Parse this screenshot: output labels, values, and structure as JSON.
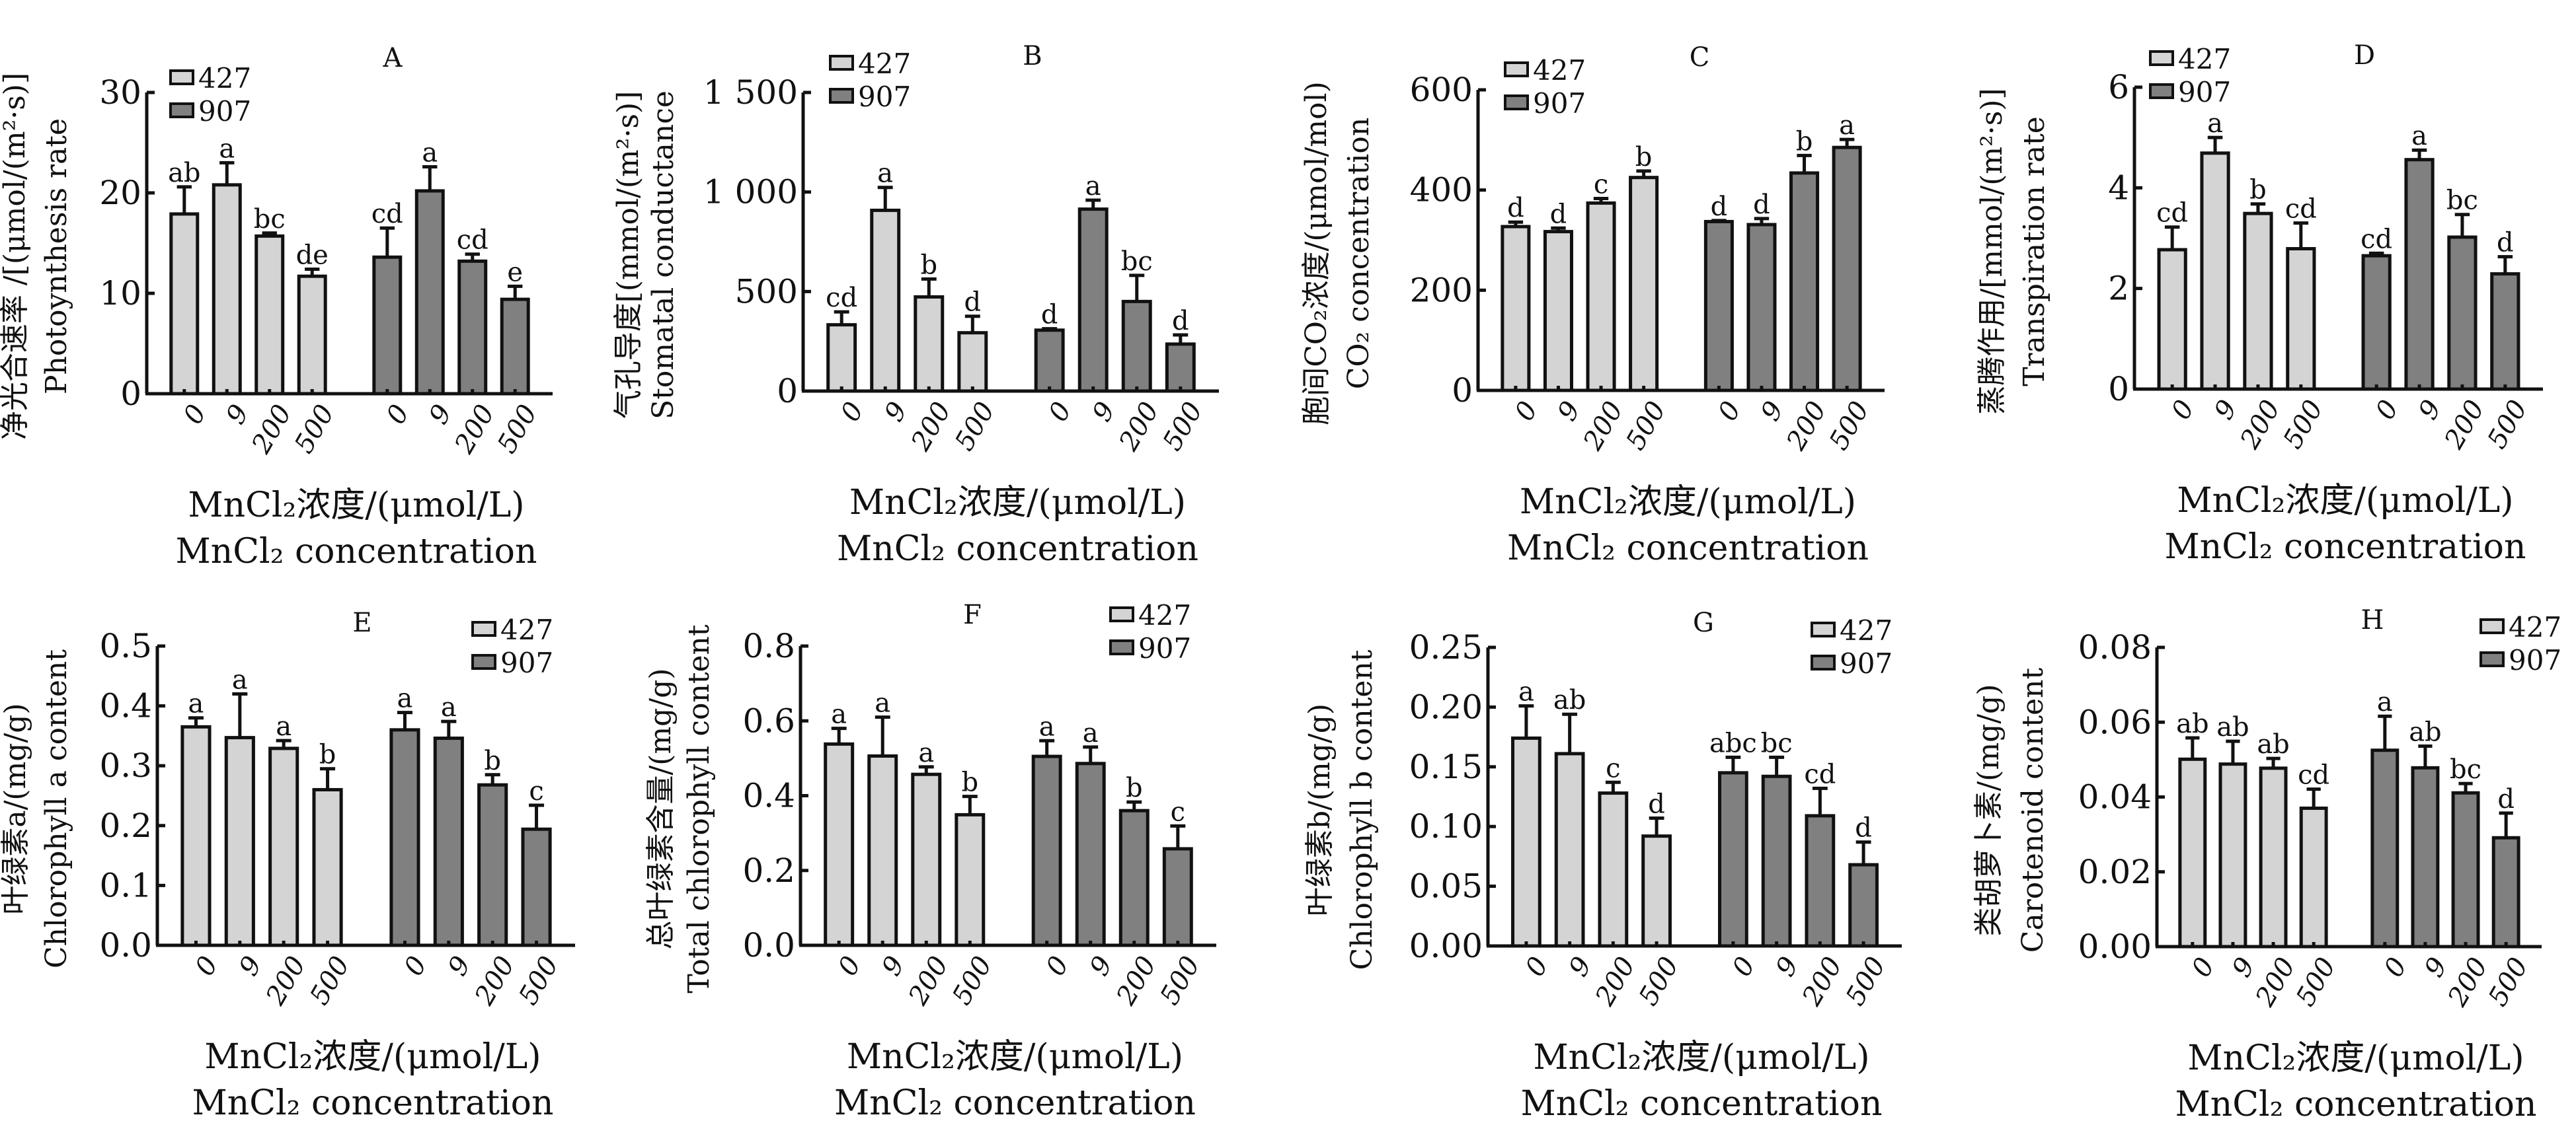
{
  "figure": {
    "x_title_cn": "MnCl₂浓度/(μmol/L)",
    "x_title_en": "MnCl₂ concentration",
    "legend": [
      {
        "label": "427",
        "color": "#d4d4d4"
      },
      {
        "label": "907",
        "color": "#808080"
      }
    ]
  },
  "chart_data": [
    {
      "id": "A",
      "type": "bar",
      "title": "A",
      "ylabel_cn": "净光合速率 /[(μmol/(m²·s)]",
      "ylabel_en": "Photoynthesis rate",
      "xlabel": "MnCl₂浓度/(μmol/L) MnCl₂ concentration",
      "categories": [
        "0",
        "9",
        "200",
        "500"
      ],
      "ylim": [
        0,
        30
      ],
      "yticks": [
        0,
        10,
        20,
        30
      ],
      "ytick_labels": [
        "0",
        "10",
        "20",
        "30"
      ],
      "legend_position": "top-left",
      "series": [
        {
          "name": "427",
          "values": [
            17.9,
            20.8,
            15.7,
            11.7
          ],
          "errors": [
            2.7,
            2.2,
            0.3,
            0.7
          ],
          "letters": [
            "ab",
            "a",
            "bc",
            "de"
          ]
        },
        {
          "name": "907",
          "values": [
            13.6,
            20.2,
            13.2,
            9.4
          ],
          "errors": [
            2.9,
            2.4,
            0.7,
            1.3
          ],
          "letters": [
            "cd",
            "a",
            "cd",
            "e"
          ]
        }
      ]
    },
    {
      "id": "B",
      "type": "bar",
      "title": "B",
      "ylabel_cn": "气孔导度[(mmol/(m²·s)]",
      "ylabel_en": "Stomatal conductance",
      "xlabel": "MnCl₂浓度/(μmol/L) MnCl₂ concentration",
      "categories": [
        "0",
        "9",
        "200",
        "500"
      ],
      "ylim": [
        0,
        1500
      ],
      "yticks": [
        0,
        500,
        1000,
        1500
      ],
      "ytick_labels": [
        "0",
        "500",
        "1 000",
        "1 500"
      ],
      "legend_position": "top-left",
      "series": [
        {
          "name": "427",
          "values": [
            333,
            908,
            473,
            293
          ],
          "errors": [
            65,
            115,
            90,
            83
          ],
          "letters": [
            "cd",
            "a",
            "b",
            "d"
          ]
        },
        {
          "name": "907",
          "values": [
            306,
            914,
            450,
            236
          ],
          "errors": [
            7,
            45,
            131,
            46
          ],
          "letters": [
            "d",
            "a",
            "bc",
            "d"
          ]
        }
      ]
    },
    {
      "id": "C",
      "type": "bar",
      "title": "C",
      "ylabel_cn": "胞间CO₂浓度/(μmol/mol)",
      "ylabel_en": "CO₂ concentration",
      "xlabel": "MnCl₂浓度/(μmol/L) MnCl₂ concentration",
      "categories": [
        "0",
        "9",
        "200",
        "500"
      ],
      "ylim": [
        0,
        600
      ],
      "yticks": [
        0,
        200,
        400,
        600
      ],
      "ytick_labels": [
        "0",
        "200",
        "400",
        "600"
      ],
      "legend_position": "top-left",
      "series": [
        {
          "name": "427",
          "values": [
            327,
            317,
            374,
            425
          ],
          "errors": [
            9,
            7,
            9,
            13
          ],
          "letters": [
            "d",
            "d",
            "c",
            "b"
          ]
        },
        {
          "name": "907",
          "values": [
            337,
            331,
            434,
            485
          ],
          "errors": [
            2,
            12,
            35,
            16
          ],
          "letters": [
            "d",
            "d",
            "b",
            "a"
          ]
        }
      ]
    },
    {
      "id": "D",
      "type": "bar",
      "title": "D",
      "ylabel_cn": "蒸腾作用/[mmol/(m²·s)]",
      "ylabel_en": "Transpiration rate",
      "xlabel": "MnCl₂浓度/(μmol/L) MnCl₂ concentration",
      "categories": [
        "0",
        "9",
        "200",
        "500"
      ],
      "ylim": [
        0,
        6
      ],
      "yticks": [
        0,
        2,
        4,
        6
      ],
      "ytick_labels": [
        "0",
        "2",
        "4",
        "6"
      ],
      "legend_position": "top-left",
      "series": [
        {
          "name": "427",
          "values": [
            2.77,
            4.69,
            3.49,
            2.79
          ],
          "errors": [
            0.45,
            0.31,
            0.19,
            0.51
          ],
          "letters": [
            "cd",
            "a",
            "b",
            "cd"
          ]
        },
        {
          "name": "907",
          "values": [
            2.65,
            4.56,
            3.02,
            2.29
          ],
          "errors": [
            0.05,
            0.19,
            0.45,
            0.34
          ],
          "letters": [
            "cd",
            "a",
            "bc",
            "d"
          ]
        }
      ]
    },
    {
      "id": "E",
      "type": "bar",
      "title": "E",
      "ylabel_cn": "叶绿素a/(mg/g)",
      "ylabel_en": "Chlorophyll a content",
      "xlabel": "MnCl₂浓度/(μmol/L) MnCl₂ concentration",
      "categories": [
        "0",
        "9",
        "200",
        "500"
      ],
      "ylim": [
        0,
        0.5
      ],
      "yticks": [
        0,
        0.1,
        0.2,
        0.3,
        0.4,
        0.5
      ],
      "ytick_labels": [
        "0.0",
        "0.1",
        "0.2",
        "0.3",
        "0.4",
        "0.5"
      ],
      "legend_position": "top-right",
      "series": [
        {
          "name": "427",
          "values": [
            0.365,
            0.347,
            0.329,
            0.26
          ],
          "errors": [
            0.015,
            0.073,
            0.013,
            0.035
          ],
          "letters": [
            "a",
            "a",
            "a",
            "b"
          ]
        },
        {
          "name": "907",
          "values": [
            0.36,
            0.346,
            0.268,
            0.194
          ],
          "errors": [
            0.029,
            0.028,
            0.017,
            0.04
          ],
          "letters": [
            "a",
            "a",
            "b",
            "c"
          ]
        }
      ]
    },
    {
      "id": "F",
      "type": "bar",
      "title": "F",
      "ylabel_cn": "总叶绿素含量/(mg/g)",
      "ylabel_en": "Total chlorophyll content",
      "xlabel": "MnCl₂浓度/(μmol/L) MnCl₂ concentration",
      "categories": [
        "0",
        "9",
        "200",
        "500"
      ],
      "ylim": [
        0,
        0.8
      ],
      "yticks": [
        0,
        0.2,
        0.4,
        0.6,
        0.8
      ],
      "ytick_labels": [
        "0.0",
        "0.2",
        "0.4",
        "0.6",
        "0.8"
      ],
      "legend_position": "top-right",
      "series": [
        {
          "name": "427",
          "values": [
            0.538,
            0.506,
            0.457,
            0.349
          ],
          "errors": [
            0.042,
            0.104,
            0.02,
            0.049
          ],
          "letters": [
            "a",
            "a",
            "a",
            "b"
          ]
        },
        {
          "name": "907",
          "values": [
            0.505,
            0.486,
            0.36,
            0.258
          ],
          "errors": [
            0.042,
            0.044,
            0.023,
            0.061
          ],
          "letters": [
            "a",
            "a",
            "b",
            "c"
          ]
        }
      ]
    },
    {
      "id": "G",
      "type": "bar",
      "title": "G",
      "ylabel_cn": "叶绿素b/(mg/g)",
      "ylabel_en": "Chlorophyll b content",
      "xlabel": "MnCl₂浓度/(μmol/L) MnCl₂ concentration",
      "categories": [
        "0",
        "9",
        "200",
        "500"
      ],
      "ylim": [
        0,
        0.25
      ],
      "yticks": [
        0,
        0.05,
        0.1,
        0.15,
        0.2,
        0.25
      ],
      "ytick_labels": [
        "0.00",
        "0.05",
        "0.10",
        "0.15",
        "0.20",
        "0.25"
      ],
      "legend_position": "top-right",
      "series": [
        {
          "name": "427",
          "values": [
            0.174,
            0.161,
            0.128,
            0.092
          ],
          "errors": [
            0.027,
            0.033,
            0.009,
            0.015
          ],
          "letters": [
            "a",
            "ab",
            "c",
            "d"
          ]
        },
        {
          "name": "907",
          "values": [
            0.145,
            0.142,
            0.109,
            0.068
          ],
          "errors": [
            0.013,
            0.016,
            0.023,
            0.019
          ],
          "letters": [
            "abc",
            "bc",
            "cd",
            "d"
          ]
        }
      ]
    },
    {
      "id": "H",
      "type": "bar",
      "title": "H",
      "ylabel_cn": "类胡萝卜素/(mg/g)",
      "ylabel_en": "Carotenoid content",
      "xlabel": "MnCl₂浓度/(μmol/L) MnCl₂ concentration",
      "categories": [
        "0",
        "9",
        "200",
        "500"
      ],
      "ylim": [
        0,
        0.08
      ],
      "yticks": [
        0,
        0.02,
        0.04,
        0.06,
        0.08
      ],
      "ytick_labels": [
        "0.00",
        "0.02",
        "0.04",
        "0.06",
        "0.08"
      ],
      "legend_position": "top-right",
      "series": [
        {
          "name": "427",
          "values": [
            0.0501,
            0.0488,
            0.0477,
            0.037
          ],
          "errors": [
            0.0057,
            0.0061,
            0.0026,
            0.0051
          ],
          "letters": [
            "ab",
            "ab",
            "ab",
            "cd"
          ]
        },
        {
          "name": "907",
          "values": [
            0.0525,
            0.0478,
            0.0411,
            0.0291
          ],
          "errors": [
            0.0091,
            0.0058,
            0.0025,
            0.0066
          ],
          "letters": [
            "a",
            "ab",
            "bc",
            "d"
          ]
        }
      ]
    }
  ]
}
